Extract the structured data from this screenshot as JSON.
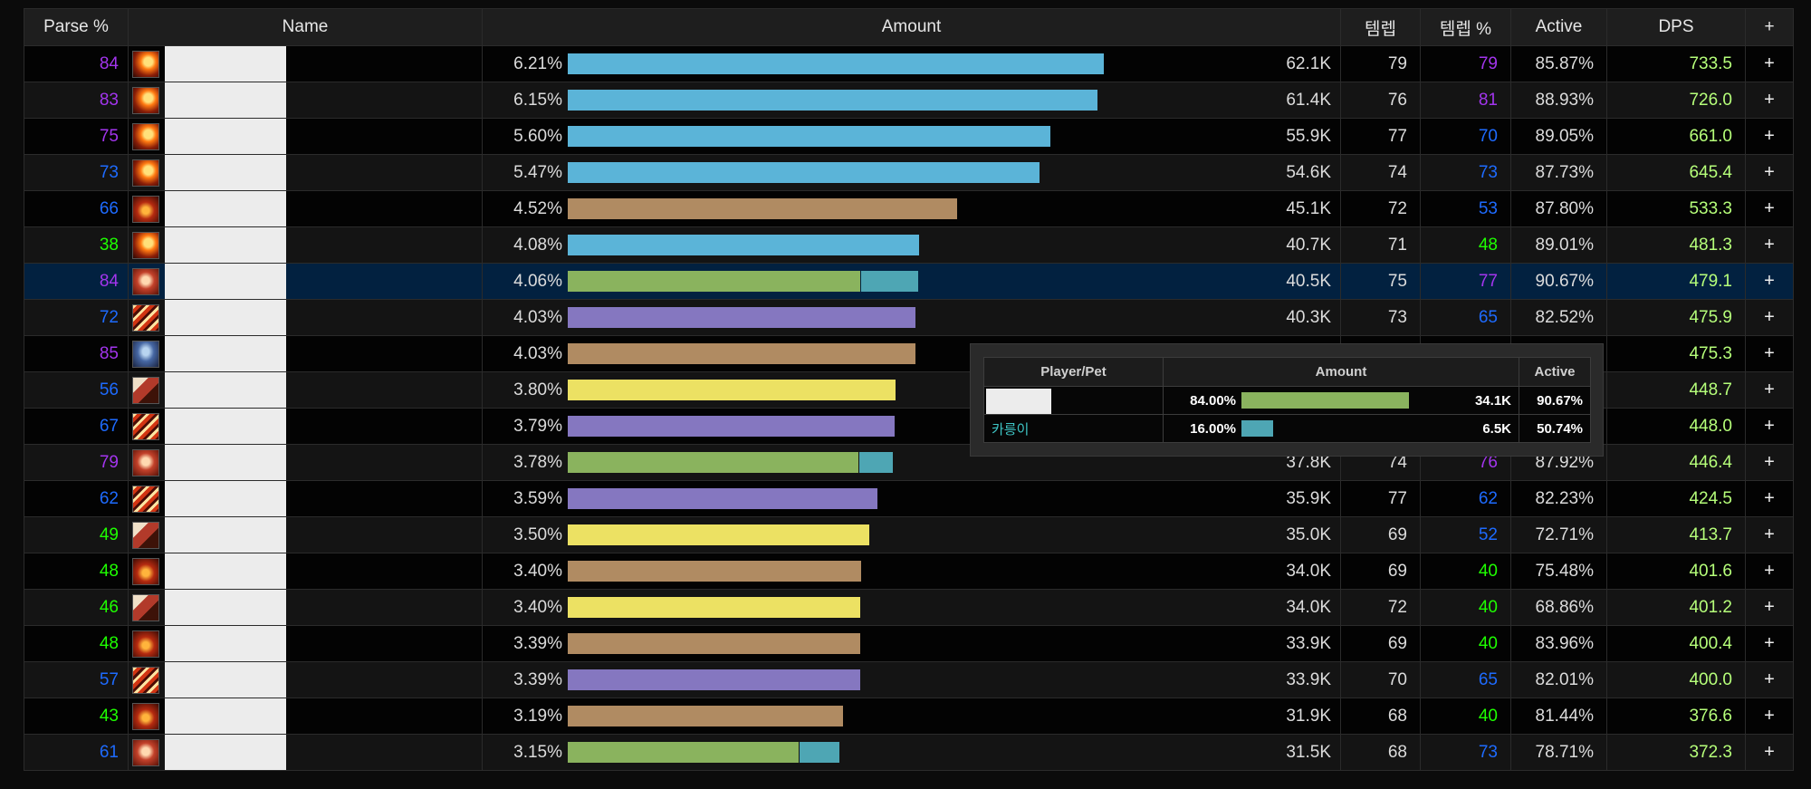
{
  "headers": {
    "parse": "Parse %",
    "name": "Name",
    "amount": "Amount",
    "ilvl": "템렙",
    "ilvl_pct": "템렙 %",
    "active": "Active",
    "dps": "DPS",
    "plus": "+"
  },
  "colors": {
    "mage": "#5bb4d8",
    "warrior": "#b08b62",
    "hunter": "#8ab35e",
    "hunter_pet": "#4ea6b4",
    "warlock": "#8577c0",
    "shaman": "#ece163",
    "selected_row": "#022140"
  },
  "rows": [
    {
      "parse": "84",
      "parse_tier": "purple",
      "icon": "fire-mage-icon",
      "pct": "6.21%",
      "amount": "62.1K",
      "bars": [
        {
          "cls": "mage",
          "frac": 0.7485
        }
      ],
      "ilvl": "79",
      "ilvl_pct": "79",
      "ilvl_tier": "purple",
      "active": "85.87%",
      "dps": "733.5",
      "plus": "+"
    },
    {
      "parse": "83",
      "parse_tier": "purple",
      "icon": "fire-mage-icon",
      "pct": "6.15%",
      "amount": "61.4K",
      "bars": [
        {
          "cls": "mage",
          "frac": 0.7402
        }
      ],
      "ilvl": "76",
      "ilvl_pct": "81",
      "ilvl_tier": "purple",
      "active": "88.93%",
      "dps": "726.0",
      "plus": "+"
    },
    {
      "parse": "75",
      "parse_tier": "purple",
      "icon": "fire-mage-icon",
      "pct": "5.60%",
      "amount": "55.9K",
      "bars": [
        {
          "cls": "mage",
          "frac": 0.6738
        }
      ],
      "ilvl": "77",
      "ilvl_pct": "70",
      "ilvl_tier": "blue",
      "active": "89.05%",
      "dps": "661.0",
      "plus": "+"
    },
    {
      "parse": "73",
      "parse_tier": "blue",
      "icon": "fire-mage-icon",
      "pct": "5.47%",
      "amount": "54.6K",
      "bars": [
        {
          "cls": "mage",
          "frac": 0.6586
        }
      ],
      "ilvl": "74",
      "ilvl_pct": "73",
      "ilvl_tier": "blue",
      "active": "87.73%",
      "dps": "645.4",
      "plus": "+"
    },
    {
      "parse": "66",
      "parse_tier": "blue",
      "icon": "warrior-helm-icon",
      "pct": "4.52%",
      "amount": "45.1K",
      "bars": [
        {
          "cls": "warrior",
          "frac": 0.5436
        }
      ],
      "ilvl": "72",
      "ilvl_pct": "53",
      "ilvl_tier": "blue",
      "active": "87.80%",
      "dps": "533.3",
      "plus": "+"
    },
    {
      "parse": "38",
      "parse_tier": "green",
      "icon": "fire-mage-icon",
      "pct": "4.08%",
      "amount": "40.7K",
      "bars": [
        {
          "cls": "mage",
          "frac": 0.4905
        }
      ],
      "ilvl": "71",
      "ilvl_pct": "48",
      "ilvl_tier": "green",
      "active": "89.01%",
      "dps": "481.3",
      "plus": "+"
    },
    {
      "parse": "84",
      "parse_tier": "purple",
      "icon": "hunter-beast-icon",
      "pct": "4.06%",
      "amount": "40.5K",
      "bars": [
        {
          "cls": "hunter",
          "frac": 0.4083
        },
        {
          "cls": "hunter_pet",
          "frac": 0.0796
        }
      ],
      "ilvl": "75",
      "ilvl_pct": "77",
      "ilvl_tier": "purple",
      "active": "90.67%",
      "dps": "479.1",
      "plus": "+",
      "selected": true
    },
    {
      "parse": "72",
      "parse_tier": "blue",
      "icon": "warlock-slash-icon",
      "pct": "4.03%",
      "amount": "40.3K",
      "bars": [
        {
          "cls": "warlock",
          "frac": 0.4855
        }
      ],
      "ilvl": "73",
      "ilvl_pct": "65",
      "ilvl_tier": "blue",
      "active": "82.52%",
      "dps": "475.9",
      "plus": "+"
    },
    {
      "parse": "85",
      "parse_tier": "purple",
      "icon": "warrior-shield-icon",
      "pct": "4.03%",
      "amount": "",
      "bars": [
        {
          "cls": "warrior",
          "frac": 0.4849
        }
      ],
      "ilvl": "",
      "ilvl_pct": "",
      "ilvl_tier": "blue",
      "active": "",
      "dps": "475.3",
      "plus": "+"
    },
    {
      "parse": "56",
      "parse_tier": "blue",
      "icon": "shaman-axe-icon",
      "pct": "3.80%",
      "amount": "",
      "bars": [
        {
          "cls": "shaman",
          "frac": 0.4576
        }
      ],
      "ilvl": "",
      "ilvl_pct": "",
      "ilvl_tier": "blue",
      "active": "",
      "dps": "448.7",
      "plus": "+"
    },
    {
      "parse": "67",
      "parse_tier": "blue",
      "icon": "warlock-slash-icon",
      "pct": "3.79%",
      "amount": "",
      "bars": [
        {
          "cls": "warlock",
          "frac": 0.4564
        }
      ],
      "ilvl": "",
      "ilvl_pct": "",
      "ilvl_tier": "blue",
      "active": "",
      "dps": "448.0",
      "plus": "+"
    },
    {
      "parse": "79",
      "parse_tier": "purple",
      "icon": "hunter-beast-icon",
      "pct": "3.78%",
      "amount": "37.8K",
      "bars": [
        {
          "cls": "hunter",
          "frac": 0.4055
        },
        {
          "cls": "hunter_pet",
          "frac": 0.0474
        }
      ],
      "ilvl": "74",
      "ilvl_pct": "76",
      "ilvl_tier": "purple",
      "active": "87.92%",
      "dps": "446.4",
      "plus": "+"
    },
    {
      "parse": "62",
      "parse_tier": "blue",
      "icon": "warlock-slash-icon",
      "pct": "3.59%",
      "amount": "35.9K",
      "bars": [
        {
          "cls": "warlock",
          "frac": 0.4325
        }
      ],
      "ilvl": "77",
      "ilvl_pct": "62",
      "ilvl_tier": "blue",
      "active": "82.23%",
      "dps": "424.5",
      "plus": "+"
    },
    {
      "parse": "49",
      "parse_tier": "green",
      "icon": "shaman-axe-icon",
      "pct": "3.50%",
      "amount": "35.0K",
      "bars": [
        {
          "cls": "shaman",
          "frac": 0.4214
        }
      ],
      "ilvl": "69",
      "ilvl_pct": "52",
      "ilvl_tier": "blue",
      "active": "72.71%",
      "dps": "413.7",
      "plus": "+"
    },
    {
      "parse": "48",
      "parse_tier": "green",
      "icon": "warrior-helm-icon",
      "pct": "3.40%",
      "amount": "34.0K",
      "bars": [
        {
          "cls": "warrior",
          "frac": 0.4096
        }
      ],
      "ilvl": "69",
      "ilvl_pct": "40",
      "ilvl_tier": "green",
      "active": "75.48%",
      "dps": "401.6",
      "plus": "+"
    },
    {
      "parse": "46",
      "parse_tier": "green",
      "icon": "shaman-axe-icon",
      "pct": "3.40%",
      "amount": "34.0K",
      "bars": [
        {
          "cls": "shaman",
          "frac": 0.4083
        }
      ],
      "ilvl": "72",
      "ilvl_pct": "40",
      "ilvl_tier": "green",
      "active": "68.86%",
      "dps": "401.2",
      "plus": "+"
    },
    {
      "parse": "48",
      "parse_tier": "green",
      "icon": "warrior-helm-icon",
      "pct": "3.39%",
      "amount": "33.9K",
      "bars": [
        {
          "cls": "warrior",
          "frac": 0.4083
        }
      ],
      "ilvl": "69",
      "ilvl_pct": "40",
      "ilvl_tier": "green",
      "active": "83.96%",
      "dps": "400.4",
      "plus": "+"
    },
    {
      "parse": "57",
      "parse_tier": "blue",
      "icon": "warlock-slash-icon",
      "pct": "3.39%",
      "amount": "33.9K",
      "bars": [
        {
          "cls": "warlock",
          "frac": 0.4083
        }
      ],
      "ilvl": "70",
      "ilvl_pct": "65",
      "ilvl_tier": "blue",
      "active": "82.01%",
      "dps": "400.0",
      "plus": "+"
    },
    {
      "parse": "43",
      "parse_tier": "green",
      "icon": "warrior-helm-icon",
      "pct": "3.19%",
      "amount": "31.9K",
      "bars": [
        {
          "cls": "warrior",
          "frac": 0.3843
        }
      ],
      "ilvl": "68",
      "ilvl_pct": "40",
      "ilvl_tier": "green",
      "active": "81.44%",
      "dps": "376.6",
      "plus": "+"
    },
    {
      "parse": "61",
      "parse_tier": "blue",
      "icon": "hunter-beast-icon",
      "pct": "3.15%",
      "amount": "31.5K",
      "bars": [
        {
          "cls": "hunter",
          "frac": 0.3224
        },
        {
          "cls": "hunter_pet",
          "frac": 0.0556
        }
      ],
      "ilvl": "68",
      "ilvl_pct": "73",
      "ilvl_tier": "blue",
      "active": "78.71%",
      "dps": "372.3",
      "plus": "+"
    }
  ],
  "tooltip": {
    "headers": {
      "player": "Player/Pet",
      "amount": "Amount",
      "active": "Active"
    },
    "rows": [
      {
        "name": "",
        "pct": "84.00%",
        "amount": "34.1K",
        "active": "90.67%",
        "bar_cls": "hunter",
        "frac": 0.84
      },
      {
        "name": "카릉이",
        "pct": "16.00%",
        "amount": "6.5K",
        "active": "50.74%",
        "bar_cls": "hunter_pet",
        "frac": 0.16
      }
    ]
  }
}
